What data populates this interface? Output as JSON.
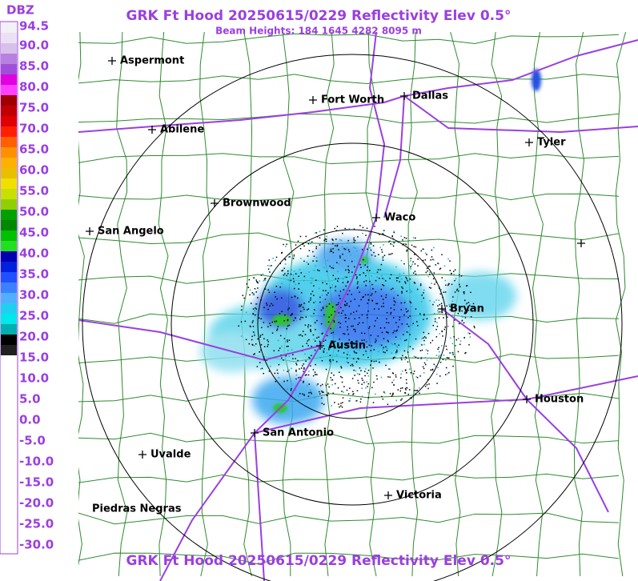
{
  "header": {
    "title": "GRK Ft Hood 20250615/0229 Reflectivity Elev 0.5°",
    "beam_heights": "Beam Heights: 184 1645 4282 8095 m"
  },
  "legend": {
    "unit": "DBZ",
    "labels": [
      "94.5",
      "90.0",
      "85.0",
      "80.0",
      "75.0",
      "70.0",
      "65.0",
      "60.0",
      "55.0",
      "50.0",
      "45.0",
      "40.0",
      "35.0",
      "30.0",
      "25.0",
      "20.0",
      "15.0",
      "10.0",
      "5.0",
      "0.0",
      "-5.0",
      "-10.0",
      "-15.0",
      "-20.0",
      "-25.0",
      "-30.0"
    ]
  },
  "cities": [
    "Aspermont",
    "Abilene",
    "Fort Worth",
    "Dallas",
    "Tyler",
    "Brownwood",
    "Waco",
    "San Angelo",
    "Bryan",
    "Austin",
    "Houston",
    "San Antonio",
    "Uvalde",
    "Victoria",
    "Piedras Negras"
  ],
  "footer": {
    "title": "GRK Ft Hood 20250615/0229 Reflectivity Elev 0.5°"
  }
}
